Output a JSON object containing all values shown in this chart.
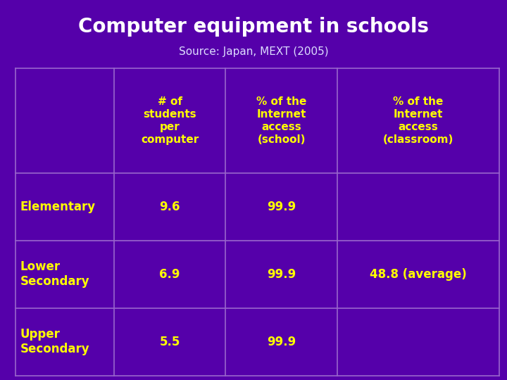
{
  "title": "Computer equipment in schools",
  "subtitle": "Source: Japan, MEXT (2005)",
  "bg_color": "#5500AA",
  "title_color": "#FFFFFF",
  "subtitle_color": "#DDDDFF",
  "header_text_color": "#FFFF00",
  "row_label_color": "#FFFF00",
  "cell_value_color": "#FFFF00",
  "grid_color": "#9966CC",
  "col_headers": [
    "# of\nstudents\nper\ncomputer",
    "% of the\nInternet\naccess\n(school)",
    "% of the\nInternet\naccess\n(classroom)"
  ],
  "row_labels": [
    "Elementary",
    "Lower\nSecondary",
    "Upper\nSecondary"
  ],
  "data": [
    [
      "9.6",
      "99.9",
      ""
    ],
    [
      "6.9",
      "99.9",
      "48.8 (average)"
    ],
    [
      "5.5",
      "99.9",
      ""
    ]
  ],
  "title_fontsize": 20,
  "subtitle_fontsize": 11,
  "header_fontsize": 11,
  "data_fontsize": 12,
  "label_fontsize": 12
}
